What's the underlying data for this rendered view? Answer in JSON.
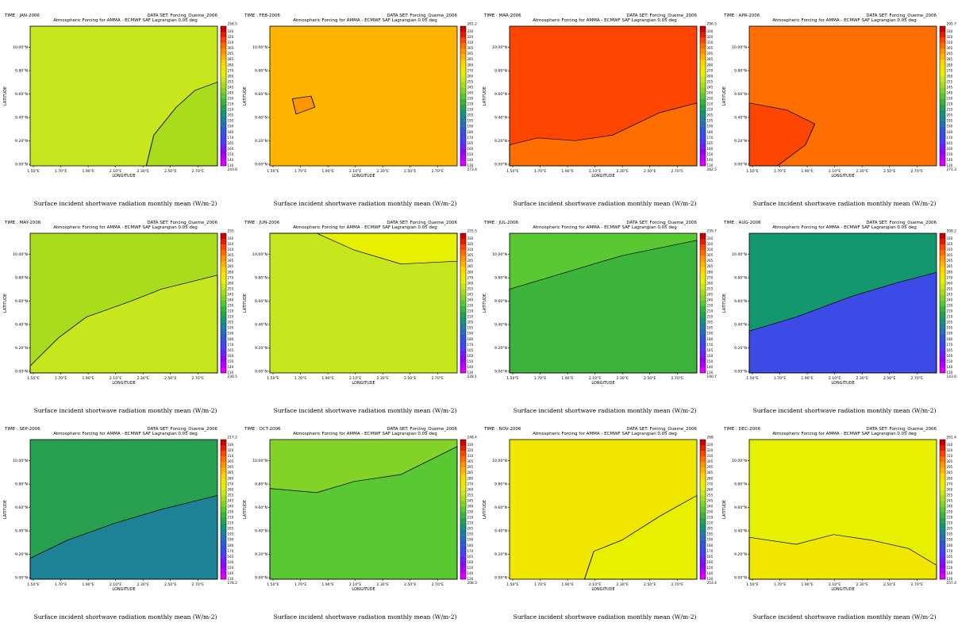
{
  "figure": {
    "units_note": "W/m-2",
    "caption": "Surface incident shortwave radiation monthly mean (W/m-2)",
    "subtitle": "Atmospheric Forcing for AMMA - ECMWF SAF Lagrangian 0.05 deg",
    "dataset_label": "DATA SET: Forcing_Oueme_2006",
    "xlabel": "LONGITUDE",
    "ylabel": "LATITUDE",
    "x_ticks": [
      "1.50°E",
      "1.70°E",
      "1.90°E",
      "2.10°E",
      "2.30°E",
      "2.50°E",
      "2.70°E"
    ],
    "y_ticks": [
      "9.00°N",
      "9.20°N",
      "9.40°N",
      "9.60°N",
      "9.80°N",
      "10.00°N"
    ],
    "colorbar_levels": [
      "130",
      "140",
      "150",
      "160",
      "165",
      "170",
      "180",
      "190",
      "195",
      "205",
      "210",
      "219",
      "230",
      "240",
      "245",
      "255",
      "260",
      "270",
      "280",
      "285",
      "295",
      "305",
      "310",
      "320",
      "330"
    ],
    "colorbar_colors": [
      "#dc00ff",
      "#b400ff",
      "#9100ff",
      "#6e1eff",
      "#4b3cff",
      "#3c4be6",
      "#2d5ad2",
      "#2a6eb4",
      "#1e8296",
      "#14966e",
      "#28a050",
      "#3cb43c",
      "#5ac832",
      "#82d228",
      "#aadc1e",
      "#c8e61e",
      "#e6f000",
      "#f0e600",
      "#ffd200",
      "#ffb400",
      "#ff9600",
      "#ff6e00",
      "#ff4600",
      "#e61e00",
      "#c80000"
    ]
  },
  "panels": [
    {
      "time": "TIME : JAN-2006",
      "max": "258.5",
      "min": "243.8",
      "base": "#c8e61e",
      "over": "#aadc1e"
    },
    {
      "time": "TIME : FEB-2006",
      "max": "281.2",
      "min": "273.4",
      "base": "#ffb400",
      "over": "#ff9600"
    },
    {
      "time": "TIME : MAR-2006",
      "max": "296.5",
      "min": "282.5",
      "base": "#ff4600",
      "over": "#ff6e00"
    },
    {
      "time": "TIME : APR-2006",
      "max": "295.7",
      "min": "271.3",
      "base": "#ff6e00",
      "over": "#ff4600"
    },
    {
      "time": "TIME : MAY-2006",
      "max": "255",
      "min": "230.5",
      "base": "#aadc1e",
      "over": "#c8e61e"
    },
    {
      "time": "TIME : JUN-2006",
      "max": "255.5",
      "min": "228.1",
      "base": "#c8e61e",
      "over": "#e6f000"
    },
    {
      "time": "TIME : JUL-2006",
      "max": "239.7",
      "min": "190.7",
      "base": "#5ac832",
      "over": "#3cb43c"
    },
    {
      "time": "TIME : AUG-2006",
      "max": "208.2",
      "min": "143.6",
      "base": "#14966e",
      "over": "#3c4be6"
    },
    {
      "time": "TIME : SEP-2006",
      "max": "217.2",
      "min": "178.2",
      "base": "#28a050",
      "over": "#1e8296"
    },
    {
      "time": "TIME : OCT-2006",
      "max": "248.4",
      "min": "208.3",
      "base": "#82d228",
      "over": "#5ac832"
    },
    {
      "time": "TIME : NOV-2006",
      "max": "268",
      "min": "253.4",
      "base": "#f0e600",
      "over": "#e6f000"
    },
    {
      "time": "TIME : DEC-2006",
      "max": "261.4",
      "min": "257.4",
      "base": "#e6f000",
      "over": "#f0e600"
    }
  ]
}
